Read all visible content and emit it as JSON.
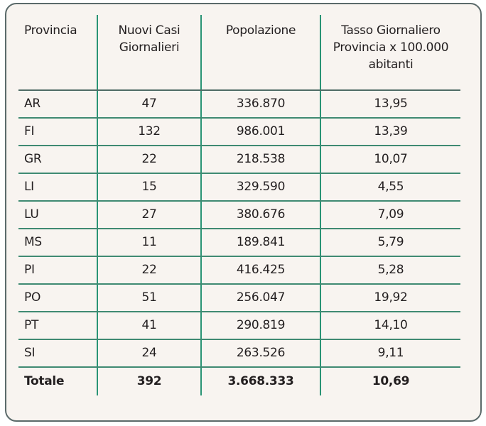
{
  "table": {
    "headers": [
      "Provincia",
      "Nuovi Casi Giornalieri",
      "Popolazione",
      "Tasso Giornaliero Provincia x 100.000 abitanti"
    ],
    "header_lines": {
      "col1": [
        "Provincia"
      ],
      "col2": [
        "Nuovi Casi",
        "Giornalieri"
      ],
      "col3": [
        "Popolazione"
      ],
      "col4": [
        "Tasso Giornaliero",
        "Provincia x 100.000",
        "abitanti"
      ]
    },
    "rows": [
      {
        "provincia": "AR",
        "nuovi_casi": "47",
        "popolazione": "336.870",
        "tasso": "13,95"
      },
      {
        "provincia": "FI",
        "nuovi_casi": "132",
        "popolazione": "986.001",
        "tasso": "13,39"
      },
      {
        "provincia": "GR",
        "nuovi_casi": "22",
        "popolazione": "218.538",
        "tasso": "10,07"
      },
      {
        "provincia": "LI",
        "nuovi_casi": "15",
        "popolazione": "329.590",
        "tasso": "4,55"
      },
      {
        "provincia": "LU",
        "nuovi_casi": "27",
        "popolazione": "380.676",
        "tasso": "7,09"
      },
      {
        "provincia": "MS",
        "nuovi_casi": "11",
        "popolazione": "189.841",
        "tasso": "5,79"
      },
      {
        "provincia": "PI",
        "nuovi_casi": "22",
        "popolazione": "416.425",
        "tasso": "5,28"
      },
      {
        "provincia": "PO",
        "nuovi_casi": "51",
        "popolazione": "256.047",
        "tasso": "19,92"
      },
      {
        "provincia": "PT",
        "nuovi_casi": "41",
        "popolazione": "290.819",
        "tasso": "14,10"
      },
      {
        "provincia": "SI",
        "nuovi_casi": "24",
        "popolazione": "263.526",
        "tasso": "9,11"
      }
    ],
    "total": {
      "provincia": "Totale",
      "nuovi_casi": "392",
      "popolazione": "3.668.333",
      "tasso": "10,69"
    }
  },
  "colors": {
    "background": "#f8f4f0",
    "frame_border": "#5b6a6a",
    "grid_line_green": "#2a9475",
    "row_line": "#3f8a72",
    "text": "#231f20"
  }
}
